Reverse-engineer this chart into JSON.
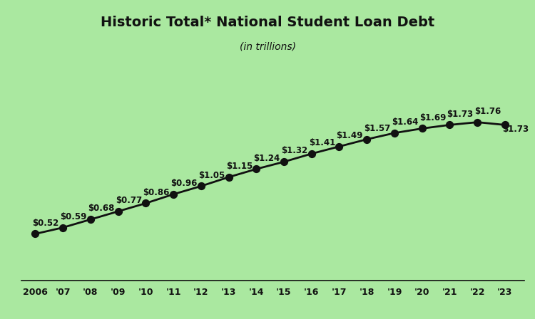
{
  "years": [
    2006,
    2007,
    2008,
    2009,
    2010,
    2011,
    2012,
    2013,
    2014,
    2015,
    2016,
    2017,
    2018,
    2019,
    2020,
    2021,
    2022,
    2023
  ],
  "values": [
    0.52,
    0.59,
    0.68,
    0.77,
    0.86,
    0.96,
    1.05,
    1.15,
    1.24,
    1.32,
    1.41,
    1.49,
    1.57,
    1.64,
    1.69,
    1.73,
    1.76,
    1.73
  ],
  "labels": [
    "$0.52",
    "$0.59",
    "$0.68",
    "$0.77",
    "$0.86",
    "$0.96",
    "$1.05",
    "$1.15",
    "$1.24",
    "$1.32",
    "$1.41",
    "$1.49",
    "$1.57",
    "$1.64",
    "$1.69",
    "$1.73",
    "$1.76",
    "$1.73"
  ],
  "x_tick_labels": [
    "2006",
    "'07",
    "'08",
    "'09",
    "'10",
    "'11",
    "'12",
    "'13",
    "'14",
    "'15",
    "'16",
    "'17",
    "'18",
    "'19",
    "'20",
    "'21",
    "'22",
    "'23"
  ],
  "title": "Historic Total* National Student Loan Debt",
  "subtitle": "(in trillions)",
  "background_color": "#aae8a0",
  "line_color": "#111111",
  "marker_color": "#111111",
  "text_color": "#111111",
  "ylim": [
    0.0,
    2.55
  ],
  "xlim": [
    2005.5,
    2023.7
  ]
}
